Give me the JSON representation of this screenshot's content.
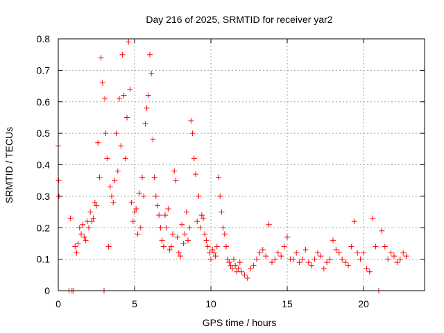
{
  "chart_data": {
    "type": "scatter",
    "title": "Day 216 of 2025, SRMTID for receiver yar2",
    "xlabel": "GPS time / hours",
    "ylabel": "SRMTID / TECUs",
    "xlim": [
      0,
      24
    ],
    "ylim": [
      0,
      0.8
    ],
    "xticks": [
      "0",
      "5",
      "10",
      "15",
      "20"
    ],
    "xtick_values": [
      0,
      5,
      10,
      15,
      20
    ],
    "yticks": [
      "0",
      "0.1",
      "0.2",
      "0.3",
      "0.4",
      "0.5",
      "0.6",
      "0.7",
      "0.8"
    ],
    "ytick_values": [
      0,
      0.1,
      0.2,
      0.3,
      0.4,
      0.5,
      0.6,
      0.7,
      0.8
    ],
    "grid": true,
    "marker": "plus",
    "series": [
      {
        "name": "SRMTID",
        "color": "#ff0000",
        "x": [
          0.0,
          0.02,
          0.04,
          0.7,
          0.8,
          0.9,
          1.0,
          1.1,
          1.2,
          1.3,
          1.4,
          1.5,
          1.6,
          1.7,
          1.8,
          1.9,
          2.0,
          2.1,
          2.2,
          2.3,
          2.4,
          2.5,
          2.6,
          2.7,
          2.8,
          2.9,
          3.0,
          3.05,
          3.1,
          3.2,
          3.3,
          3.4,
          3.5,
          3.6,
          3.7,
          3.8,
          3.9,
          4.0,
          4.1,
          4.2,
          4.3,
          4.4,
          4.5,
          4.6,
          4.7,
          4.8,
          4.9,
          5.0,
          5.1,
          5.2,
          5.3,
          5.4,
          5.5,
          5.6,
          5.7,
          5.8,
          5.9,
          6.0,
          6.1,
          6.2,
          6.3,
          6.4,
          6.5,
          6.6,
          6.7,
          6.8,
          6.9,
          7.0,
          7.1,
          7.2,
          7.3,
          7.4,
          7.5,
          7.6,
          7.7,
          7.8,
          7.9,
          8.0,
          8.1,
          8.2,
          8.3,
          8.4,
          8.5,
          8.6,
          8.7,
          8.8,
          8.9,
          9.0,
          9.1,
          9.2,
          9.3,
          9.4,
          9.5,
          9.6,
          9.7,
          9.8,
          9.9,
          10.0,
          10.1,
          10.2,
          10.3,
          10.4,
          10.5,
          10.6,
          10.7,
          10.8,
          10.9,
          11.0,
          11.1,
          11.2,
          11.3,
          11.4,
          11.5,
          11.6,
          11.7,
          11.8,
          11.9,
          12.0,
          12.2,
          12.4,
          12.6,
          12.8,
          13.0,
          13.2,
          13.4,
          13.6,
          13.8,
          14.0,
          14.2,
          14.4,
          14.6,
          14.8,
          15.0,
          15.2,
          15.4,
          15.6,
          15.8,
          16.0,
          16.2,
          16.4,
          16.6,
          16.8,
          17.0,
          17.2,
          17.4,
          17.6,
          17.8,
          18.0,
          18.2,
          18.4,
          18.6,
          18.8,
          19.0,
          19.2,
          19.4,
          19.6,
          19.8,
          20.0,
          20.2,
          20.4,
          20.6,
          20.8,
          21.0,
          21.2,
          21.4,
          21.6,
          21.8,
          22.0,
          22.2,
          22.4,
          22.6,
          22.8
        ],
        "y": [
          0.46,
          0.35,
          0.3,
          0.0,
          0.23,
          0.0,
          0.0,
          0.14,
          0.12,
          0.15,
          0.2,
          0.18,
          0.21,
          0.17,
          0.16,
          0.22,
          0.2,
          0.25,
          0.22,
          0.23,
          0.28,
          0.27,
          0.47,
          0.36,
          0.74,
          0.66,
          0.0,
          0.61,
          0.5,
          0.42,
          0.14,
          0.33,
          0.3,
          0.28,
          0.35,
          0.5,
          0.38,
          0.61,
          0.46,
          0.75,
          0.62,
          0.42,
          0.55,
          0.79,
          0.64,
          0.28,
          0.22,
          0.25,
          0.26,
          0.18,
          0.31,
          0.2,
          0.36,
          0.3,
          0.53,
          0.58,
          0.62,
          0.75,
          0.69,
          0.48,
          0.36,
          0.3,
          0.27,
          0.24,
          0.2,
          0.16,
          0.14,
          0.24,
          0.2,
          0.26,
          0.13,
          0.14,
          0.18,
          0.38,
          0.35,
          0.17,
          0.12,
          0.11,
          0.21,
          0.15,
          0.18,
          0.25,
          0.16,
          0.2,
          0.54,
          0.5,
          0.42,
          0.37,
          0.22,
          0.3,
          0.2,
          0.24,
          0.23,
          0.18,
          0.16,
          0.14,
          0.12,
          0.1,
          0.13,
          0.12,
          0.11,
          0.14,
          0.36,
          0.3,
          0.25,
          0.2,
          0.18,
          0.14,
          0.1,
          0.09,
          0.08,
          0.07,
          0.1,
          0.08,
          0.06,
          0.07,
          0.09,
          0.06,
          0.05,
          0.04,
          0.07,
          0.08,
          0.1,
          0.12,
          0.13,
          0.11,
          0.21,
          0.09,
          0.1,
          0.12,
          0.11,
          0.14,
          0.17,
          0.1,
          0.1,
          0.12,
          0.09,
          0.1,
          0.13,
          0.09,
          0.08,
          0.1,
          0.12,
          0.11,
          0.07,
          0.09,
          0.1,
          0.16,
          0.13,
          0.12,
          0.1,
          0.09,
          0.08,
          0.14,
          0.22,
          0.12,
          0.1,
          0.12,
          0.07,
          0.06,
          0.23,
          0.14,
          0.0,
          0.19,
          0.14,
          0.1,
          0.12,
          0.11,
          0.09,
          0.1,
          0.12,
          0.11
        ]
      }
    ]
  }
}
